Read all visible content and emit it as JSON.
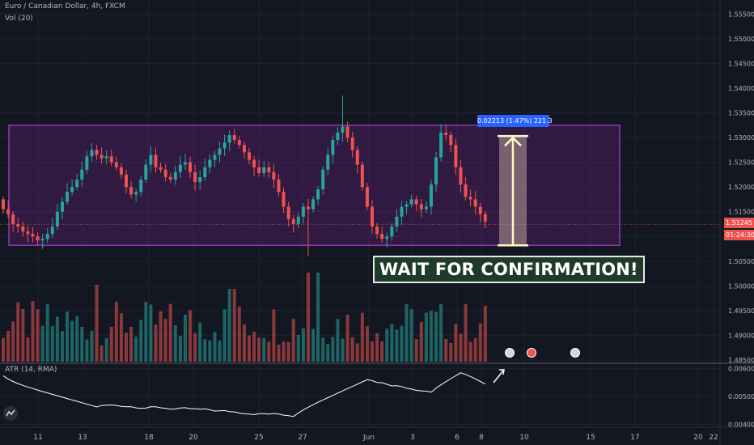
{
  "legend": {
    "symbol": "Euro / Canadian Dollar, 4h, FXCM",
    "volume_study": "Vol (20)",
    "atr_study": "ATR (14, RMA)"
  },
  "annotations": {
    "callout": "WAIT FOR CONFIRMATION!",
    "measure": "0.02213 (1.47%) 221.3"
  },
  "price_scale": {
    "ticks": [
      "1.55500",
      "1.55000",
      "1.54500",
      "1.54000",
      "1.53500",
      "1.53000",
      "1.52500",
      "1.52000",
      "1.51500",
      "1.51000",
      "1.50500",
      "1.50000",
      "1.49500",
      "1.49000",
      "1.48500"
    ],
    "last_price": "1.51245",
    "countdown": "01:24:30"
  },
  "atr_scale": {
    "ticks": [
      "0.00600",
      "0.00500",
      "0.00400"
    ]
  },
  "time_axis": {
    "labels": [
      "11",
      "13",
      "18",
      "20",
      "25",
      "27",
      "Jun",
      "3",
      "6",
      "8",
      "10",
      "15",
      "17",
      "20",
      "22"
    ]
  },
  "colors": {
    "background": "#131722",
    "bull": "#26a69a",
    "bear": "#ef5350",
    "range_box": "#9c27b0",
    "measure": "#2962ff"
  },
  "chart_data": {
    "type": "candlestick",
    "series_close": [
      1.5155,
      1.5145,
      1.5125,
      1.512,
      1.511,
      1.5105,
      1.51,
      1.5092,
      1.5095,
      1.5105,
      1.512,
      1.515,
      1.517,
      1.519,
      1.52,
      1.5215,
      1.5235,
      1.5262,
      1.5275,
      1.5265,
      1.5258,
      1.5262,
      1.525,
      1.524,
      1.5225,
      1.52,
      1.5185,
      1.519,
      1.5215,
      1.5245,
      1.5265,
      1.524,
      1.5235,
      1.522,
      1.5215,
      1.523,
      1.5245,
      1.525,
      1.523,
      1.521,
      1.522,
      1.524,
      1.5255,
      1.5265,
      1.5278,
      1.529,
      1.5305,
      1.5295,
      1.5285,
      1.527,
      1.5255,
      1.524,
      1.5228,
      1.524,
      1.523,
      1.5215,
      1.519,
      1.516,
      1.5135,
      1.5125,
      1.514,
      1.516,
      1.5155,
      1.5175,
      1.5195,
      1.5235,
      1.5265,
      1.5295,
      1.531,
      1.5322,
      1.53,
      1.5275,
      1.5245,
      1.52,
      1.516,
      1.512,
      1.5105,
      1.5095,
      1.51,
      1.512,
      1.514,
      1.516,
      1.5165,
      1.5175,
      1.5165,
      1.5155,
      1.516,
      1.5205,
      1.526,
      1.531,
      1.5305,
      1.5285,
      1.524,
      1.5205,
      1.518,
      1.5175,
      1.516,
      1.5145,
      1.513
    ],
    "volume_note": "relative bar heights",
    "atr_range": [
      0.0039,
      0.0061
    ],
    "range_box": {
      "top": 1.5325,
      "bottom": 1.5082
    },
    "measure": {
      "from": 1.5082,
      "to": 1.5303,
      "change": "0.02213 (1.47%) 221.3"
    },
    "price_axis_range": [
      1.4845,
      1.5575
    ],
    "grid": true
  }
}
